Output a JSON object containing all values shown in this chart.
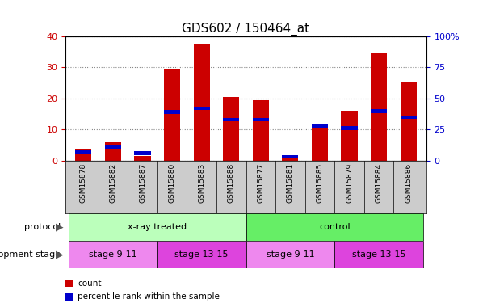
{
  "title": "GDS602 / 150464_at",
  "samples": [
    "GSM15878",
    "GSM15882",
    "GSM15887",
    "GSM15880",
    "GSM15883",
    "GSM15888",
    "GSM15877",
    "GSM15881",
    "GSM15885",
    "GSM15879",
    "GSM15884",
    "GSM15886"
  ],
  "count_values": [
    3.5,
    6.0,
    1.5,
    29.5,
    37.5,
    20.5,
    19.5,
    1.0,
    12.0,
    16.0,
    34.5,
    25.5
  ],
  "percentile_values": [
    7,
    11,
    6,
    39,
    42,
    33,
    33,
    3,
    28,
    26,
    40,
    35
  ],
  "ylim_left": [
    0,
    40
  ],
  "ylim_right": [
    0,
    100
  ],
  "yticks_left": [
    0,
    10,
    20,
    30,
    40
  ],
  "yticks_right": [
    0,
    25,
    50,
    75,
    100
  ],
  "bar_color_red": "#CC0000",
  "bar_color_blue": "#0000CC",
  "bar_width": 0.55,
  "protocol_labels": [
    "x-ray treated",
    "control"
  ],
  "protocol_color_light": "#BBFFBB",
  "protocol_color_dark": "#66EE66",
  "stage_labels": [
    "stage 9-11",
    "stage 13-15",
    "stage 9-11",
    "stage 13-15"
  ],
  "stage_color_light": "#EE88EE",
  "stage_color_dark": "#DD44DD",
  "label_protocol": "protocol",
  "label_stage": "development stage",
  "legend_count": "count",
  "legend_percentile": "percentile rank within the sample",
  "left_ylabel_color": "#CC0000",
  "right_ylabel_color": "#0000CC",
  "grid_color": "#888888",
  "tick_bg": "#CCCCCC",
  "title_fontsize": 11
}
